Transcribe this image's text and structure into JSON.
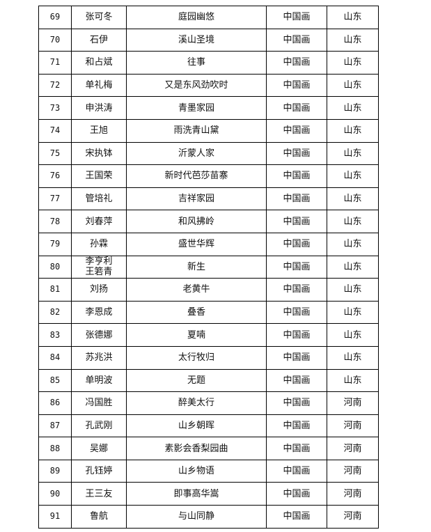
{
  "rows": [
    {
      "no": "69",
      "name": "张可冬",
      "title": "庭园幽悠",
      "category": "中国画",
      "province": "山东"
    },
    {
      "no": "70",
      "name": "石伊",
      "title": "溪山圣境",
      "category": "中国画",
      "province": "山东"
    },
    {
      "no": "71",
      "name": "和占斌",
      "title": "往事",
      "category": "中国画",
      "province": "山东"
    },
    {
      "no": "72",
      "name": "单礼梅",
      "title": "又是东风劲吹时",
      "category": "中国画",
      "province": "山东"
    },
    {
      "no": "73",
      "name": "申洪涛",
      "title": "青墨家园",
      "category": "中国画",
      "province": "山东"
    },
    {
      "no": "74",
      "name": "王旭",
      "title": "雨洗青山黛",
      "category": "中国画",
      "province": "山东"
    },
    {
      "no": "75",
      "name": "宋执钵",
      "title": "沂蒙人家",
      "category": "中国画",
      "province": "山东"
    },
    {
      "no": "76",
      "name": "王国荣",
      "title": "新时代芭莎苗寨",
      "category": "中国画",
      "province": "山东"
    },
    {
      "no": "77",
      "name": "管培礼",
      "title": "吉祥家园",
      "category": "中国画",
      "province": "山东"
    },
    {
      "no": "78",
      "name": "刘春萍",
      "title": "和风拂岭",
      "category": "中国画",
      "province": "山东"
    },
    {
      "no": "79",
      "name": "孙霖",
      "title": "盛世华辉",
      "category": "中国画",
      "province": "山东"
    },
    {
      "no": "80",
      "name": "李亨利\n王箬青",
      "title": "新生",
      "category": "中国画",
      "province": "山东"
    },
    {
      "no": "81",
      "name": "刘扬",
      "title": "老黄牛",
      "category": "中国画",
      "province": "山东"
    },
    {
      "no": "82",
      "name": "李恩成",
      "title": "叠香",
      "category": "中国画",
      "province": "山东"
    },
    {
      "no": "83",
      "name": "张德娜",
      "title": "夏喃",
      "category": "中国画",
      "province": "山东"
    },
    {
      "no": "84",
      "name": "苏兆洪",
      "title": "太行牧归",
      "category": "中国画",
      "province": "山东"
    },
    {
      "no": "85",
      "name": "单明波",
      "title": "无题",
      "category": "中国画",
      "province": "山东"
    },
    {
      "no": "86",
      "name": "冯国胜",
      "title": "醉美太行",
      "category": "中国画",
      "province": "河南"
    },
    {
      "no": "87",
      "name": "孔武刚",
      "title": "山乡朝晖",
      "category": "中国画",
      "province": "河南"
    },
    {
      "no": "88",
      "name": "吴娜",
      "title": "素影会香梨园曲",
      "category": "中国画",
      "province": "河南"
    },
    {
      "no": "89",
      "name": "孔钰婷",
      "title": "山乡物语",
      "category": "中国画",
      "province": "河南"
    },
    {
      "no": "90",
      "name": "王三友",
      "title": "即事高华嵩",
      "category": "中国画",
      "province": "河南"
    },
    {
      "no": "91",
      "name": "鲁航",
      "title": "与山同静",
      "category": "中国画",
      "province": "河南"
    }
  ]
}
